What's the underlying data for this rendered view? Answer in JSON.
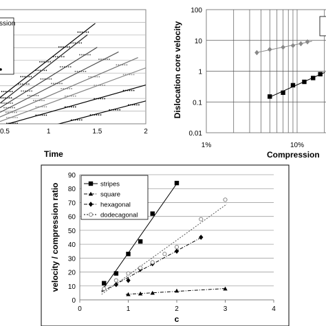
{
  "chart_data": [
    {
      "id": "time_panel",
      "type": "line",
      "title": "",
      "xlabel": "Time",
      "ylabel": "",
      "legend_title_fragment": "ssion",
      "x_ticks": [
        "0.5",
        "1",
        "1.5",
        "2"
      ],
      "xlim": [
        0.5,
        2.0
      ],
      "ylim": [
        0,
        1
      ],
      "grid": "horizontal",
      "series": [
        {
          "x": [
            0.5,
            1.48
          ],
          "y": [
            0.23,
            0.88
          ]
        },
        {
          "x": [
            0.5,
            1.4
          ],
          "y": [
            0.18,
            0.78
          ]
        },
        {
          "x": [
            0.5,
            1.5
          ],
          "y": [
            0.14,
            0.67
          ]
        },
        {
          "x": [
            0.5,
            1.72
          ],
          "y": [
            0.1,
            0.63
          ]
        },
        {
          "x": [
            0.5,
            1.92
          ],
          "y": [
            0.06,
            0.58
          ]
        },
        {
          "x": [
            0.5,
            2.0
          ],
          "y": [
            0.02,
            0.49
          ]
        },
        {
          "x": [
            0.5,
            2.0
          ],
          "y": [
            -0.02,
            0.34
          ]
        },
        {
          "x": [
            1.02,
            2.0
          ],
          "y": [
            -0.02,
            0.2
          ]
        }
      ]
    },
    {
      "id": "velocity_panel",
      "type": "scatter",
      "title": "",
      "xlabel": "Compression",
      "ylabel": "Dislocation core velocity",
      "x_scale": "log",
      "y_scale": "log",
      "x_ticks": [
        "1%",
        "10%"
      ],
      "y_ticks": [
        "0.01",
        "0.1",
        "1",
        "10",
        "100"
      ],
      "xlim": [
        0.01,
        0.2
      ],
      "ylim": [
        0.01,
        100
      ],
      "grid": "both",
      "series": [
        {
          "color": "#888888",
          "marker": "diamond",
          "x": [
            0.036,
            0.05,
            0.07,
            0.09,
            0.11,
            0.13
          ],
          "y": [
            4.0,
            5.1,
            6.0,
            6.8,
            7.8,
            9.0
          ]
        },
        {
          "color": "#000000",
          "marker": "square",
          "x": [
            0.05,
            0.07,
            0.09,
            0.12,
            0.15,
            0.18
          ],
          "y": [
            0.15,
            0.2,
            0.35,
            0.45,
            0.6,
            0.8
          ]
        }
      ]
    },
    {
      "id": "ratio_panel",
      "type": "scatter",
      "title": "",
      "xlabel": "c",
      "ylabel": "velocity / compression ratio",
      "xlim": [
        0,
        4
      ],
      "ylim": [
        0,
        90
      ],
      "x_ticks": [
        "0",
        "1",
        "2",
        "3",
        "4"
      ],
      "y_ticks": [
        "0",
        "10",
        "20",
        "30",
        "40",
        "50",
        "60",
        "70",
        "80",
        "90"
      ],
      "grid": "horizontal",
      "legend_position": "top-left",
      "series": [
        {
          "name": "stripes",
          "marker": "square",
          "line": "solid",
          "x": [
            0.5,
            0.75,
            1.0,
            1.25,
            1.5,
            2.0
          ],
          "y": [
            12,
            19,
            33,
            42,
            62,
            84
          ]
        },
        {
          "name": "square",
          "marker": "triangle",
          "line": "dashdot",
          "x": [
            1.0,
            1.25,
            1.5,
            2.0,
            3.0
          ],
          "y": [
            4,
            4.5,
            5,
            6.5,
            8
          ]
        },
        {
          "name": "hexagonal",
          "marker": "diamond",
          "line": "dashdot",
          "x": [
            0.5,
            0.75,
            1.0,
            1.25,
            1.5,
            2.0,
            2.5
          ],
          "y": [
            8,
            11,
            14,
            22,
            26,
            35,
            45
          ]
        },
        {
          "name": "dodecagonal",
          "marker": "circle",
          "line": "dotted",
          "x": [
            0.5,
            0.75,
            1.0,
            1.25,
            1.5,
            1.75,
            2.0,
            2.5,
            3.0
          ],
          "y": [
            8,
            14,
            19,
            23,
            27,
            33,
            38,
            58,
            72
          ]
        }
      ]
    }
  ]
}
